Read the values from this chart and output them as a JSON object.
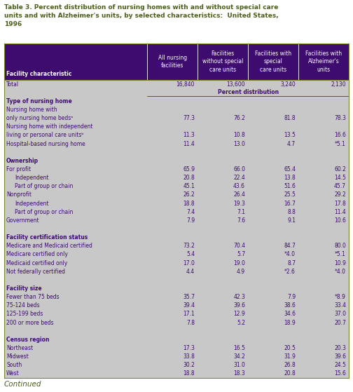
{
  "title": "Table 3. Percent distribution of nursing homes with and without special care\nunits and with Alzheimer's units, by selected characteristics:  United States,\n1996",
  "title_color": "#4a5e1a",
  "header_bg": "#3d0c6e",
  "header_text_color": "#ffffff",
  "body_bg": "#c8c8c8",
  "section_text_color": "#3d0c6e",
  "data_text_color": "#3d0c6e",
  "col_headers": [
    "All nursing\nfacilities",
    "Facilities\nwithout special\ncare units",
    "Facilities with\nspecial\ncare units",
    "Facilities with\nAlzheimer's\nunits"
  ],
  "row_label_header": "Facility characteristic",
  "rows": [
    {
      "label": "Total",
      "indent": 0,
      "bold": false,
      "values": [
        "16,840",
        "13,600",
        "3,240",
        "2,130"
      ]
    },
    {
      "label": "Percent distribution",
      "indent": 0,
      "bold": false,
      "values": [
        "",
        "",
        "",
        ""
      ],
      "center_label": true,
      "underline": true
    },
    {
      "label": "Type of nursing home",
      "indent": 0,
      "bold": true,
      "values": [
        "",
        "",
        "",
        ""
      ]
    },
    {
      "label": "Nursing home with",
      "indent": 0,
      "bold": false,
      "values": [
        "",
        "",
        "",
        ""
      ]
    },
    {
      "label": "only nursing home bedsᵃ",
      "indent": 0,
      "bold": false,
      "values": [
        "77.3",
        "76.2",
        "81.8",
        "78.3"
      ]
    },
    {
      "label": "Nursing home with independent",
      "indent": 0,
      "bold": false,
      "values": [
        "",
        "",
        "",
        ""
      ]
    },
    {
      "label": "living or personal care unitsᵇ",
      "indent": 0,
      "bold": false,
      "values": [
        "11.3",
        "10.8",
        "13.5",
        "16.6"
      ]
    },
    {
      "label": "Hospital-based nursing home",
      "indent": 0,
      "bold": false,
      "values": [
        "11.4",
        "13.0",
        "4.7",
        "*5.1"
      ]
    },
    {
      "label": "",
      "indent": 0,
      "bold": false,
      "values": [
        "",
        "",
        "",
        ""
      ],
      "spacer": true
    },
    {
      "label": "Ownership",
      "indent": 0,
      "bold": true,
      "values": [
        "",
        "",
        "",
        ""
      ]
    },
    {
      "label": "For profit",
      "indent": 0,
      "bold": false,
      "values": [
        "65.9",
        "66.0",
        "65.4",
        "60.2"
      ]
    },
    {
      "label": "Independent",
      "indent": 1,
      "bold": false,
      "values": [
        "20.8",
        "22.4",
        "13.8",
        "14.5"
      ]
    },
    {
      "label": "Part of group or chain",
      "indent": 1,
      "bold": false,
      "values": [
        "45.1",
        "43.6",
        "51.6",
        "45.7"
      ]
    },
    {
      "label": "Nonprofit",
      "indent": 0,
      "bold": false,
      "values": [
        "26.2",
        "26.4",
        "25.5",
        "29.2"
      ]
    },
    {
      "label": "Independent",
      "indent": 1,
      "bold": false,
      "values": [
        "18.8",
        "19.3",
        "16.7",
        "17.8"
      ]
    },
    {
      "label": "Part of group or chain",
      "indent": 1,
      "bold": false,
      "values": [
        "7.4",
        "7.1",
        "8.8",
        "11.4"
      ]
    },
    {
      "label": "Government",
      "indent": 0,
      "bold": false,
      "values": [
        "7.9",
        "7.6",
        "9.1",
        "10.6"
      ]
    },
    {
      "label": "",
      "indent": 0,
      "bold": false,
      "values": [
        "",
        "",
        "",
        ""
      ],
      "spacer": true
    },
    {
      "label": "Facility certification status",
      "indent": 0,
      "bold": true,
      "values": [
        "",
        "",
        "",
        ""
      ]
    },
    {
      "label": "Medicare and Medicaid certified",
      "indent": 0,
      "bold": false,
      "values": [
        "73.2",
        "70.4",
        "84.7",
        "80.0"
      ]
    },
    {
      "label": "Medicare certified only",
      "indent": 0,
      "bold": false,
      "values": [
        "5.4",
        "5.7",
        "*4.0",
        "*5.1"
      ]
    },
    {
      "label": "Medicaid certified only",
      "indent": 0,
      "bold": false,
      "values": [
        "17.0",
        "19.0",
        "8.7",
        "10.9"
      ]
    },
    {
      "label": "Not federally certified",
      "indent": 0,
      "bold": false,
      "values": [
        "4.4",
        "4.9",
        "*2.6",
        "*4.0"
      ]
    },
    {
      "label": "",
      "indent": 0,
      "bold": false,
      "values": [
        "",
        "",
        "",
        ""
      ],
      "spacer": true
    },
    {
      "label": "Facility size",
      "indent": 0,
      "bold": true,
      "values": [
        "",
        "",
        "",
        ""
      ]
    },
    {
      "label": "Fewer than 75 beds",
      "indent": 0,
      "bold": false,
      "values": [
        "35.7",
        "42.3",
        "7.9",
        "*8.9"
      ]
    },
    {
      "label": "75-124 beds",
      "indent": 0,
      "bold": false,
      "values": [
        "39.4",
        "39.6",
        "38.6",
        "33.4"
      ]
    },
    {
      "label": "125-199 beds",
      "indent": 0,
      "bold": false,
      "values": [
        "17.1",
        "12.9",
        "34.6",
        "37.0"
      ]
    },
    {
      "label": "200 or more beds",
      "indent": 0,
      "bold": false,
      "values": [
        "7.8",
        "5.2",
        "18.9",
        "20.7"
      ]
    },
    {
      "label": "",
      "indent": 0,
      "bold": false,
      "values": [
        "",
        "",
        "",
        ""
      ],
      "spacer": true
    },
    {
      "label": "Census region",
      "indent": 0,
      "bold": true,
      "values": [
        "",
        "",
        "",
        ""
      ]
    },
    {
      "label": "Northeast",
      "indent": 0,
      "bold": false,
      "values": [
        "17.3",
        "16.5",
        "20.5",
        "20.3"
      ]
    },
    {
      "label": "Midwest",
      "indent": 0,
      "bold": false,
      "values": [
        "33.8",
        "34.2",
        "31.9",
        "39.6"
      ]
    },
    {
      "label": "South",
      "indent": 0,
      "bold": false,
      "values": [
        "30.2",
        "31.0",
        "26.8",
        "24.5"
      ]
    },
    {
      "label": "West",
      "indent": 0,
      "bold": false,
      "values": [
        "18.8",
        "18.3",
        "20.8",
        "15.6"
      ]
    }
  ],
  "footer": "Continued",
  "figsize": [
    5.04,
    5.59
  ],
  "dpi": 100
}
